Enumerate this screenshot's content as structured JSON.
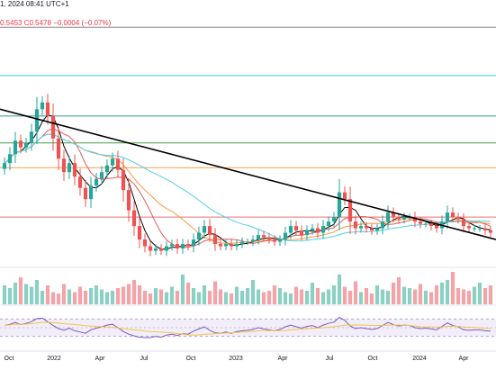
{
  "header": {
    "datetime": "1, 2024 08:41 UTC+1",
    "low": "0.5453",
    "close": "C0.5478",
    "change": "−0.0004 (−0.07%)"
  },
  "chart_data": {
    "type": "candlestick",
    "panes": [
      "price",
      "volume",
      "rsi"
    ],
    "x_axis_labels": [
      "Oct",
      "2022",
      "Apr",
      "Jul",
      "Oct",
      "2023",
      "Apr",
      "Jul",
      "Oct",
      "2024",
      "Apr"
    ],
    "price": {
      "series": [
        {
          "name": "Candles",
          "type": "ohlc-weekly",
          "closes": [
            0.86,
            0.9,
            0.96,
            0.93,
            0.95,
            1.0,
            1.1,
            1.13,
            1.07,
            0.97,
            0.88,
            0.82,
            0.86,
            0.8,
            0.75,
            0.7,
            0.76,
            0.79,
            0.82,
            0.85,
            0.88,
            0.83,
            0.74,
            0.65,
            0.58,
            0.52,
            0.49,
            0.47,
            0.48,
            0.47,
            0.49,
            0.5,
            0.48,
            0.5,
            0.49,
            0.52,
            0.55,
            0.58,
            0.54,
            0.5,
            0.49,
            0.5,
            0.49,
            0.5,
            0.51,
            0.51,
            0.52,
            0.54,
            0.53,
            0.52,
            0.51,
            0.52,
            0.55,
            0.58,
            0.56,
            0.54,
            0.56,
            0.57,
            0.55,
            0.58,
            0.6,
            0.62,
            0.73,
            0.7,
            0.6,
            0.57,
            0.58,
            0.57,
            0.56,
            0.57,
            0.6,
            0.64,
            0.62,
            0.61,
            0.62,
            0.62,
            0.6,
            0.59,
            0.59,
            0.58,
            0.57,
            0.6,
            0.64,
            0.62,
            0.61,
            0.58,
            0.57,
            0.57,
            0.57,
            0.56,
            0.55
          ]
        },
        {
          "name": "Descending trendline",
          "color": "#000000"
        },
        {
          "name": "MA fast",
          "color": "#e35b5b"
        },
        {
          "name": "MA medium",
          "color": "#f59b42"
        },
        {
          "name": "MA slow",
          "color": "#4fd1e6"
        },
        {
          "name": "MA long",
          "color": "#5a55d6"
        }
      ],
      "horizontal_levels": [
        {
          "color": "#888888"
        },
        {
          "color": "#2ec9e0"
        },
        {
          "color": "#2a9d8f"
        },
        {
          "color": "#43a047"
        },
        {
          "color": "#f5a04a"
        },
        {
          "color": "#e57373"
        }
      ]
    },
    "volume": {
      "colors": {
        "up": "#8ad1c4",
        "down": "#f4a3a8"
      },
      "values": [
        14,
        12,
        16,
        20,
        15,
        13,
        18,
        10,
        14,
        9,
        8,
        15,
        11,
        9,
        13,
        10,
        12,
        14,
        11,
        9,
        10,
        12,
        13,
        15,
        18,
        14,
        10,
        8,
        12,
        11,
        9,
        13,
        10,
        22,
        16,
        12,
        9,
        14,
        10,
        17,
        11,
        9,
        8,
        13,
        10,
        12,
        18,
        11,
        9,
        10,
        14,
        12,
        9,
        8,
        13,
        11,
        10,
        16,
        12,
        9,
        11,
        14,
        22,
        13,
        10,
        17,
        9,
        12,
        8,
        14,
        11,
        10,
        16,
        20,
        13,
        12,
        11,
        15,
        10,
        9,
        14,
        16,
        18,
        24,
        12,
        11,
        10,
        13,
        16,
        12,
        14
      ]
    },
    "rsi": {
      "band_color": "#7e57c2",
      "values": [
        55,
        58,
        62,
        57,
        60,
        64,
        71,
        72,
        64,
        55,
        48,
        44,
        49,
        43,
        40,
        37,
        45,
        49,
        52,
        56,
        58,
        50,
        41,
        35,
        31,
        28,
        27,
        27,
        30,
        28,
        33,
        35,
        32,
        36,
        35,
        42,
        47,
        52,
        44,
        38,
        37,
        40,
        37,
        41,
        43,
        44,
        46,
        50,
        47,
        45,
        43,
        46,
        52,
        56,
        52,
        49,
        53,
        55,
        50,
        56,
        60,
        63,
        74,
        67,
        54,
        48,
        50,
        48,
        46,
        48,
        55,
        62,
        57,
        54,
        56,
        55,
        50,
        48,
        49,
        47,
        45,
        53,
        61,
        55,
        52,
        45,
        44,
        45,
        45,
        43,
        42
      ]
    }
  }
}
